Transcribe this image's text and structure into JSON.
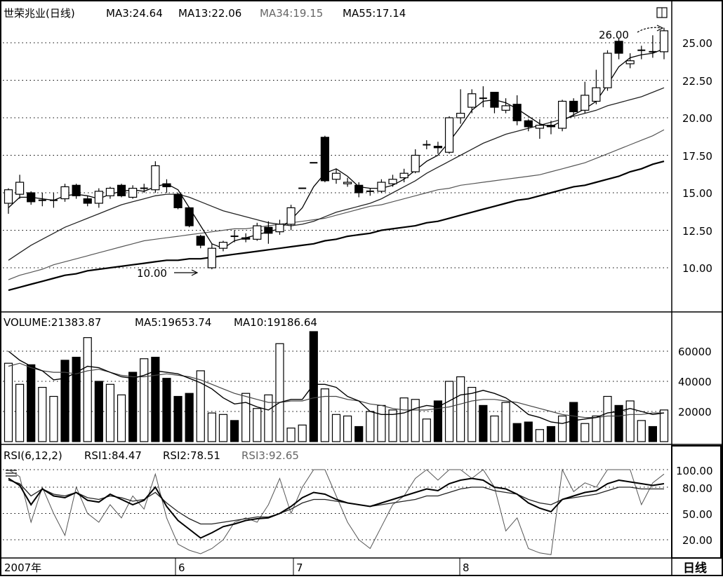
{
  "window": {
    "collapse_icon": "square-icon",
    "period_button": "日线"
  },
  "price_panel": {
    "header": {
      "title": "世荣兆业(日线)",
      "ma3": "MA3:24.64",
      "ma13": "MA13:22.06",
      "ma34": "MA34:19.15",
      "ma55": "MA55:17.14"
    },
    "annotation_high": "26.00",
    "annotation_low": "10.00",
    "yticks": [
      "25.00",
      "22.50",
      "20.00",
      "17.50",
      "15.00",
      "12.50",
      "10.00"
    ]
  },
  "volume_panel": {
    "header": {
      "title": "VOLUME:21383.87",
      "ma5": "MA5:19653.74",
      "ma10": "MA10:19186.64"
    },
    "yticks": [
      "60000",
      "40000",
      "20000"
    ]
  },
  "rsi_panel": {
    "header": {
      "title": "RSI(6,12,2)",
      "rsi1": "RSI1:84.47",
      "rsi2": "RSI2:78.51",
      "rsi3": "RSI3:92.65"
    },
    "yticks": [
      "100.00",
      "80.00",
      "50.00",
      "20.00"
    ]
  },
  "xaxis": {
    "labels": [
      "2007年",
      "6",
      "7",
      "8"
    ]
  },
  "chart_data": {
    "type": "candlestick",
    "price": {
      "ylim": [
        7.5,
        28
      ],
      "candles": [
        [
          14.3,
          15.2,
          15.3,
          13.6,
          1
        ],
        [
          14.9,
          15.7,
          16.2,
          14.6,
          1
        ],
        [
          15.0,
          14.4,
          15.1,
          14.2,
          0
        ],
        [
          14.5,
          14.5,
          15.0,
          14.1,
          2
        ],
        [
          14.6,
          14.5,
          15.0,
          14.0,
          2
        ],
        [
          14.6,
          15.4,
          15.6,
          14.4,
          1
        ],
        [
          15.5,
          14.8,
          15.6,
          14.6,
          0
        ],
        [
          14.6,
          14.3,
          14.8,
          14.1,
          0
        ],
        [
          14.3,
          15.1,
          15.3,
          14.0,
          1
        ],
        [
          14.8,
          15.3,
          15.4,
          14.6,
          1
        ],
        [
          15.5,
          14.8,
          15.6,
          14.7,
          0
        ],
        [
          14.7,
          15.3,
          15.5,
          14.6,
          1
        ],
        [
          15.2,
          15.3,
          15.6,
          15.0,
          2
        ],
        [
          15.2,
          16.8,
          17.1,
          15.0,
          1
        ],
        [
          15.6,
          15.4,
          15.9,
          15.0,
          0
        ],
        [
          14.9,
          14.0,
          15.0,
          13.9,
          0
        ],
        [
          14.0,
          12.8,
          14.0,
          12.7,
          0
        ],
        [
          12.1,
          11.5,
          12.2,
          11.3,
          0
        ],
        [
          10.0,
          11.3,
          11.6,
          9.9,
          1
        ],
        [
          11.3,
          11.7,
          11.8,
          11.1,
          1
        ],
        [
          12.0,
          12.1,
          12.5,
          11.7,
          2
        ],
        [
          12.0,
          12.0,
          12.3,
          11.7,
          0
        ],
        [
          11.9,
          12.8,
          13.0,
          11.8,
          1
        ],
        [
          12.7,
          12.3,
          13.1,
          11.6,
          0
        ],
        [
          12.4,
          12.9,
          13.2,
          12.2,
          1
        ],
        [
          12.9,
          14.0,
          14.2,
          12.5,
          1
        ],
        [
          15.3,
          15.3,
          15.3,
          15.3,
          2
        ],
        [
          17.0,
          17.0,
          17.0,
          17.0,
          2
        ],
        [
          18.7,
          15.8,
          18.8,
          15.7,
          0
        ],
        [
          15.9,
          16.3,
          16.6,
          15.6,
          1
        ],
        [
          15.7,
          15.6,
          16.0,
          15.4,
          1
        ],
        [
          15.5,
          15.0,
          15.7,
          14.7,
          0
        ],
        [
          14.9,
          15.1,
          15.3,
          14.8,
          2
        ],
        [
          15.1,
          15.7,
          15.9,
          15.0,
          1
        ],
        [
          15.6,
          15.9,
          16.2,
          15.4,
          1
        ],
        [
          16.0,
          16.3,
          16.6,
          15.7,
          1
        ],
        [
          16.4,
          17.5,
          17.9,
          16.3,
          1
        ],
        [
          18.2,
          18.2,
          18.5,
          17.9,
          2
        ],
        [
          18.0,
          18.1,
          18.4,
          17.6,
          0
        ],
        [
          17.7,
          20.0,
          20.1,
          17.6,
          1
        ],
        [
          20.0,
          20.3,
          21.9,
          19.6,
          1
        ],
        [
          20.7,
          21.6,
          21.9,
          20.3,
          1
        ],
        [
          21.3,
          21.3,
          22.1,
          20.7,
          2
        ],
        [
          21.7,
          20.7,
          21.7,
          20.3,
          0
        ],
        [
          20.5,
          20.8,
          21.3,
          20.3,
          1
        ],
        [
          20.9,
          19.8,
          21.5,
          19.5,
          0
        ],
        [
          19.8,
          19.4,
          19.9,
          19.1,
          0
        ],
        [
          19.3,
          19.5,
          19.9,
          18.6,
          1
        ],
        [
          19.5,
          19.4,
          19.8,
          18.9,
          0
        ],
        [
          19.3,
          21.1,
          21.2,
          19.1,
          1
        ],
        [
          21.1,
          20.4,
          21.3,
          20.1,
          0
        ],
        [
          20.5,
          21.5,
          22.4,
          20.3,
          1
        ],
        [
          21.1,
          22.0,
          23.2,
          20.9,
          1
        ],
        [
          22.0,
          24.3,
          24.5,
          21.8,
          1
        ],
        [
          25.1,
          24.3,
          25.3,
          23.9,
          0
        ],
        [
          23.6,
          23.8,
          24.3,
          23.3,
          1
        ],
        [
          24.1,
          24.5,
          24.8,
          23.9,
          2
        ],
        [
          24.6,
          24.4,
          25.5,
          24.0,
          2
        ],
        [
          24.4,
          25.8,
          26.0,
          23.9,
          1
        ]
      ],
      "ma3": [
        14.0,
        14.7,
        14.7,
        14.6,
        14.5,
        14.8,
        14.9,
        14.8,
        14.6,
        14.9,
        15.1,
        15.2,
        15.1,
        15.4,
        15.6,
        15.2,
        14.0,
        12.8,
        11.6,
        11.3,
        11.8,
        12.0,
        12.2,
        12.4,
        12.6,
        13.2,
        14.0,
        15.4,
        16.3,
        16.6,
        16.1,
        15.4,
        15.3,
        15.3,
        15.5,
        15.9,
        16.5,
        17.1,
        17.5,
        18.4,
        19.4,
        20.5,
        21.1,
        21.2,
        21.0,
        20.6,
        20.1,
        19.6,
        19.4,
        19.8,
        20.2,
        20.6,
        21.1,
        22.2,
        23.4,
        24.0,
        24.2,
        24.3,
        24.6
      ],
      "ma13": [
        10.5,
        11.0,
        11.5,
        11.9,
        12.3,
        12.7,
        13.0,
        13.3,
        13.6,
        13.9,
        14.2,
        14.4,
        14.6,
        14.8,
        14.9,
        14.9,
        14.7,
        14.4,
        14.1,
        13.8,
        13.6,
        13.4,
        13.2,
        13.0,
        12.9,
        12.8,
        12.9,
        13.1,
        13.4,
        13.7,
        13.9,
        14.1,
        14.3,
        14.6,
        15.0,
        15.4,
        15.8,
        16.3,
        16.7,
        17.1,
        17.5,
        17.9,
        18.3,
        18.6,
        18.9,
        19.1,
        19.3,
        19.5,
        19.7,
        19.9,
        20.1,
        20.3,
        20.5,
        20.8,
        21.0,
        21.2,
        21.4,
        21.7,
        22.0
      ],
      "ma34": [
        9.2,
        9.5,
        9.7,
        9.9,
        10.2,
        10.4,
        10.6,
        10.8,
        11.0,
        11.2,
        11.4,
        11.6,
        11.8,
        11.9,
        12.0,
        12.1,
        12.2,
        12.3,
        12.4,
        12.5,
        12.6,
        12.6,
        12.7,
        12.8,
        12.9,
        13.0,
        13.1,
        13.2,
        13.3,
        13.5,
        13.7,
        13.9,
        14.1,
        14.2,
        14.4,
        14.6,
        14.8,
        15.0,
        15.2,
        15.3,
        15.5,
        15.6,
        15.7,
        15.8,
        15.9,
        16.0,
        16.1,
        16.2,
        16.4,
        16.6,
        16.8,
        17.0,
        17.3,
        17.6,
        17.9,
        18.2,
        18.5,
        18.8,
        19.2
      ],
      "ma55": [
        8.5,
        8.7,
        8.9,
        9.1,
        9.3,
        9.5,
        9.6,
        9.8,
        9.9,
        10.0,
        10.1,
        10.2,
        10.3,
        10.4,
        10.5,
        10.5,
        10.6,
        10.6,
        10.7,
        10.8,
        10.9,
        11.0,
        11.1,
        11.2,
        11.3,
        11.4,
        11.5,
        11.6,
        11.8,
        11.9,
        12.1,
        12.2,
        12.3,
        12.5,
        12.6,
        12.7,
        12.8,
        13.0,
        13.1,
        13.3,
        13.5,
        13.7,
        13.9,
        14.1,
        14.3,
        14.5,
        14.6,
        14.8,
        15.0,
        15.2,
        15.4,
        15.5,
        15.7,
        15.9,
        16.1,
        16.4,
        16.6,
        16.9,
        17.1
      ]
    },
    "volume": {
      "ylim": [
        0,
        75000
      ],
      "values": [
        52000,
        38000,
        51000,
        36000,
        30000,
        54000,
        56000,
        69000,
        40000,
        38000,
        31000,
        46000,
        55000,
        56000,
        42000,
        30000,
        32000,
        47000,
        19000,
        18000,
        14000,
        32000,
        22000,
        31000,
        65000,
        9000,
        11000,
        73000,
        35000,
        18000,
        17000,
        10000,
        20000,
        24000,
        21000,
        29000,
        28000,
        15000,
        27000,
        40000,
        43000,
        36000,
        24000,
        17000,
        26000,
        12000,
        13000,
        8000,
        10000,
        17000,
        26000,
        12000,
        17000,
        30000,
        24000,
        27000,
        14000,
        10000,
        21000
      ],
      "up": [
        1,
        1,
        0,
        1,
        1,
        0,
        0,
        1,
        0,
        1,
        1,
        0,
        1,
        0,
        0,
        0,
        0,
        1,
        1,
        1,
        0,
        1,
        1,
        1,
        1,
        1,
        1,
        0,
        1,
        1,
        1,
        0,
        1,
        1,
        1,
        1,
        1,
        1,
        0,
        1,
        1,
        1,
        0,
        1,
        1,
        0,
        0,
        1,
        0,
        1,
        0,
        1,
        1,
        1,
        0,
        1,
        1,
        0,
        1
      ],
      "ma5": [
        60000,
        54000,
        50000,
        47000,
        41000,
        42000,
        46000,
        50000,
        49000,
        46000,
        43000,
        42000,
        44000,
        47000,
        46000,
        45000,
        42000,
        39000,
        35000,
        29000,
        25000,
        26000,
        23000,
        21000,
        26000,
        28000,
        28000,
        38000,
        38000,
        36000,
        30000,
        27000,
        20000,
        18000,
        18000,
        19000,
        22000,
        24000,
        23000,
        27000,
        31000,
        32000,
        34000,
        32000,
        29000,
        24000,
        18000,
        16000,
        13000,
        12000,
        14000,
        15000,
        16000,
        19000,
        20000,
        22000,
        20000,
        18000,
        19000
      ],
      "ma10": [
        50000,
        52000,
        49000,
        47000,
        46000,
        46000,
        45000,
        47000,
        48000,
        46000,
        44000,
        43000,
        43000,
        44000,
        45000,
        44000,
        43000,
        41000,
        38000,
        35000,
        32000,
        30000,
        28000,
        26000,
        26000,
        27000,
        27000,
        29000,
        30000,
        30000,
        28000,
        27000,
        25000,
        24000,
        22000,
        21000,
        21000,
        21000,
        22000,
        23000,
        25000,
        27000,
        28000,
        28000,
        27000,
        26000,
        24000,
        22000,
        20000,
        18000,
        17000,
        16000,
        16000,
        17000,
        17000,
        18000,
        18000,
        19000,
        19000
      ]
    },
    "rsi": {
      "ylim": [
        0,
        110
      ],
      "rsi1": [
        90,
        82,
        60,
        78,
        70,
        68,
        74,
        65,
        63,
        72,
        66,
        60,
        65,
        80,
        58,
        42,
        32,
        22,
        28,
        35,
        38,
        42,
        44,
        45,
        50,
        58,
        68,
        74,
        72,
        66,
        62,
        60,
        58,
        62,
        66,
        70,
        74,
        78,
        76,
        84,
        88,
        90,
        88,
        80,
        78,
        72,
        62,
        56,
        52,
        66,
        70,
        74,
        76,
        84,
        88,
        86,
        84,
        82,
        84
      ],
      "rsi2": [
        88,
        84,
        70,
        78,
        72,
        70,
        74,
        68,
        66,
        70,
        68,
        64,
        66,
        74,
        62,
        52,
        44,
        38,
        38,
        40,
        42,
        44,
        46,
        46,
        50,
        55,
        62,
        66,
        66,
        64,
        62,
        60,
        58,
        60,
        62,
        64,
        66,
        70,
        70,
        74,
        78,
        80,
        80,
        76,
        74,
        72,
        66,
        62,
        60,
        66,
        68,
        70,
        72,
        76,
        80,
        80,
        78,
        78,
        78
      ],
      "rsi3": [
        100,
        92,
        40,
        80,
        50,
        25,
        80,
        50,
        40,
        60,
        45,
        70,
        55,
        95,
        45,
        15,
        8,
        4,
        10,
        20,
        40,
        45,
        40,
        60,
        90,
        50,
        80,
        100,
        100,
        70,
        40,
        20,
        10,
        35,
        60,
        70,
        90,
        100,
        88,
        100,
        100,
        90,
        100,
        80,
        30,
        45,
        10,
        5,
        3,
        100,
        75,
        85,
        80,
        100,
        100,
        100,
        60,
        85,
        95
      ]
    }
  }
}
